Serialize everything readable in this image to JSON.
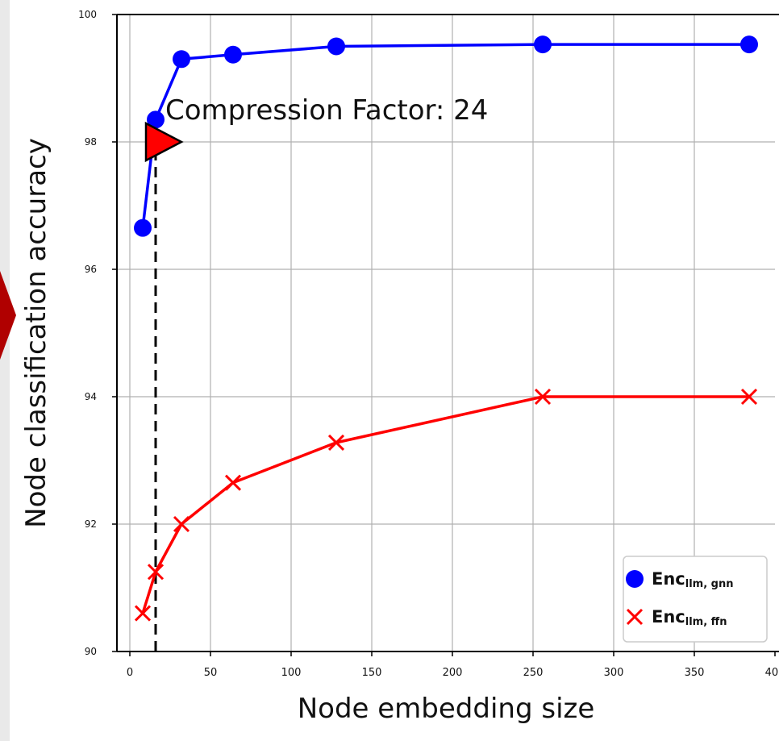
{
  "chart_data": {
    "type": "line",
    "title": "",
    "xlabel": "Node embedding size",
    "ylabel": "Node classification accuracy",
    "xlim": [
      -8,
      400
    ],
    "ylim": [
      90,
      100
    ],
    "xticks": [
      0,
      50,
      100,
      150,
      200,
      250,
      300,
      350,
      400
    ],
    "yticks": [
      90,
      92,
      94,
      96,
      98,
      100
    ],
    "grid": true,
    "legend_position": "lower-right",
    "series": [
      {
        "name": "Enc llm, gnn",
        "legend_main": "Enc",
        "legend_sub": "llm, gnn",
        "marker": "circle",
        "color": "#0000ff",
        "x": [
          8,
          16,
          32,
          64,
          128,
          256,
          384
        ],
        "y": [
          96.65,
          98.35,
          99.3,
          99.37,
          99.5,
          99.53,
          99.53
        ]
      },
      {
        "name": "Enc llm, ffn",
        "legend_main": "Enc",
        "legend_sub": "llm, ffn",
        "marker": "x",
        "color": "#ff0000",
        "x": [
          8,
          16,
          32,
          64,
          128,
          256,
          384
        ],
        "y": [
          90.6,
          91.25,
          92.0,
          92.65,
          93.28,
          94.0,
          94.0
        ]
      }
    ],
    "annotation": {
      "text": "Compression Factor: 24",
      "vline_x": 16,
      "triangle_x": 21,
      "triangle_y": 98.0,
      "triangle_color": "#ff0000"
    }
  }
}
